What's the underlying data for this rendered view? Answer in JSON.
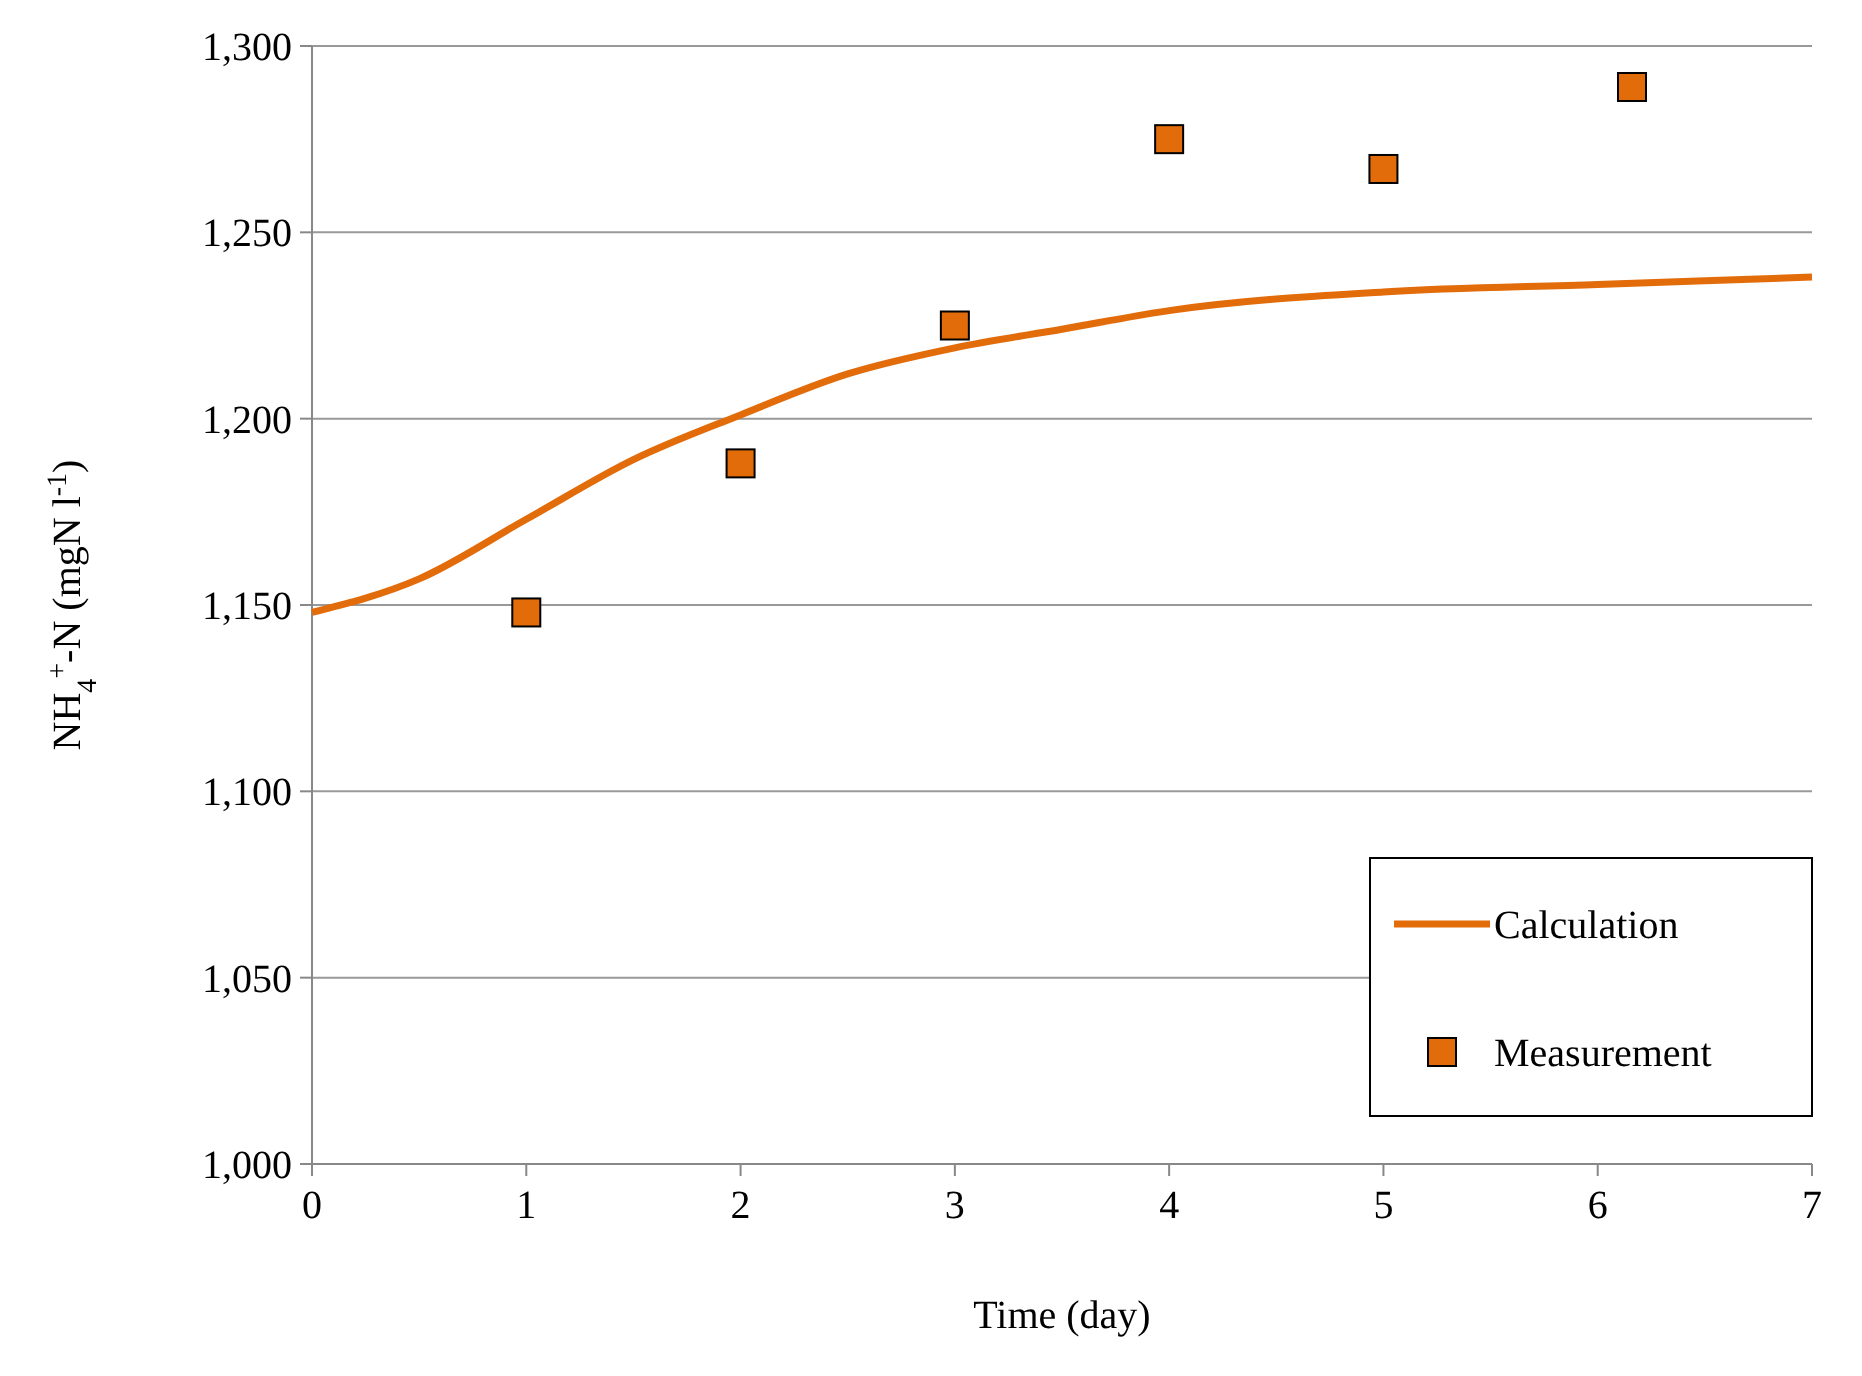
{
  "chart_data": {
    "type": "line",
    "xlabel": "Time (day)",
    "ylabel": "NH$_{4}$$^{+}$-N (mgN l$^{-1}$)",
    "xlim": [
      0,
      7
    ],
    "xticks": [
      0,
      1,
      2,
      3,
      4,
      5,
      6,
      7
    ],
    "ylim": [
      1000,
      1300
    ],
    "yticks": [
      {
        "value": 1000,
        "label": "1,000"
      },
      {
        "value": 1050,
        "label": "1,050"
      },
      {
        "value": 1100,
        "label": "1,100"
      },
      {
        "value": 1150,
        "label": "1,150"
      },
      {
        "value": 1200,
        "label": "1,200"
      },
      {
        "value": 1250,
        "label": "1,250"
      },
      {
        "value": 1300,
        "label": "1,300"
      }
    ],
    "grid": "y",
    "legend": "bottom right",
    "series": [
      {
        "name": "Calculation",
        "color": "#e36c0a",
        "marker": "none",
        "x": [
          0,
          0.5,
          1,
          1.5,
          2,
          2.5,
          3,
          3.5,
          4,
          5,
          6,
          7
        ],
        "values": [
          1148,
          1157,
          1173,
          1189,
          1201,
          1212,
          1219,
          1224,
          1229,
          1234,
          1236,
          1238
        ]
      },
      {
        "name": "Measurement",
        "type": "scatter",
        "color": "#e36c0a",
        "marker": "square",
        "x": [
          1,
          2,
          3,
          4,
          5,
          6.16
        ],
        "values": [
          1148,
          1188,
          1225,
          1275,
          1267,
          1289
        ]
      }
    ]
  }
}
